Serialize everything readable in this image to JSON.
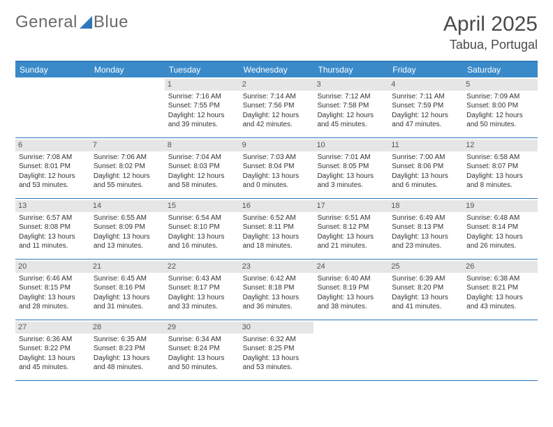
{
  "brand": {
    "part1": "General",
    "part2": "Blue"
  },
  "title": {
    "month_year": "April 2025",
    "location": "Tabua, Portugal"
  },
  "colors": {
    "header_bg": "#3a8ac9",
    "border": "#2e77b8",
    "daynum_bg": "#e6e6e6",
    "text": "#333333",
    "logo_text": "#6a6a6a"
  },
  "weekdays": [
    "Sunday",
    "Monday",
    "Tuesday",
    "Wednesday",
    "Thursday",
    "Friday",
    "Saturday"
  ],
  "weeks": [
    [
      null,
      null,
      {
        "n": "1",
        "sr": "Sunrise: 7:16 AM",
        "ss": "Sunset: 7:55 PM",
        "dl": "Daylight: 12 hours and 39 minutes."
      },
      {
        "n": "2",
        "sr": "Sunrise: 7:14 AM",
        "ss": "Sunset: 7:56 PM",
        "dl": "Daylight: 12 hours and 42 minutes."
      },
      {
        "n": "3",
        "sr": "Sunrise: 7:12 AM",
        "ss": "Sunset: 7:58 PM",
        "dl": "Daylight: 12 hours and 45 minutes."
      },
      {
        "n": "4",
        "sr": "Sunrise: 7:11 AM",
        "ss": "Sunset: 7:59 PM",
        "dl": "Daylight: 12 hours and 47 minutes."
      },
      {
        "n": "5",
        "sr": "Sunrise: 7:09 AM",
        "ss": "Sunset: 8:00 PM",
        "dl": "Daylight: 12 hours and 50 minutes."
      }
    ],
    [
      {
        "n": "6",
        "sr": "Sunrise: 7:08 AM",
        "ss": "Sunset: 8:01 PM",
        "dl": "Daylight: 12 hours and 53 minutes."
      },
      {
        "n": "7",
        "sr": "Sunrise: 7:06 AM",
        "ss": "Sunset: 8:02 PM",
        "dl": "Daylight: 12 hours and 55 minutes."
      },
      {
        "n": "8",
        "sr": "Sunrise: 7:04 AM",
        "ss": "Sunset: 8:03 PM",
        "dl": "Daylight: 12 hours and 58 minutes."
      },
      {
        "n": "9",
        "sr": "Sunrise: 7:03 AM",
        "ss": "Sunset: 8:04 PM",
        "dl": "Daylight: 13 hours and 0 minutes."
      },
      {
        "n": "10",
        "sr": "Sunrise: 7:01 AM",
        "ss": "Sunset: 8:05 PM",
        "dl": "Daylight: 13 hours and 3 minutes."
      },
      {
        "n": "11",
        "sr": "Sunrise: 7:00 AM",
        "ss": "Sunset: 8:06 PM",
        "dl": "Daylight: 13 hours and 6 minutes."
      },
      {
        "n": "12",
        "sr": "Sunrise: 6:58 AM",
        "ss": "Sunset: 8:07 PM",
        "dl": "Daylight: 13 hours and 8 minutes."
      }
    ],
    [
      {
        "n": "13",
        "sr": "Sunrise: 6:57 AM",
        "ss": "Sunset: 8:08 PM",
        "dl": "Daylight: 13 hours and 11 minutes."
      },
      {
        "n": "14",
        "sr": "Sunrise: 6:55 AM",
        "ss": "Sunset: 8:09 PM",
        "dl": "Daylight: 13 hours and 13 minutes."
      },
      {
        "n": "15",
        "sr": "Sunrise: 6:54 AM",
        "ss": "Sunset: 8:10 PM",
        "dl": "Daylight: 13 hours and 16 minutes."
      },
      {
        "n": "16",
        "sr": "Sunrise: 6:52 AM",
        "ss": "Sunset: 8:11 PM",
        "dl": "Daylight: 13 hours and 18 minutes."
      },
      {
        "n": "17",
        "sr": "Sunrise: 6:51 AM",
        "ss": "Sunset: 8:12 PM",
        "dl": "Daylight: 13 hours and 21 minutes."
      },
      {
        "n": "18",
        "sr": "Sunrise: 6:49 AM",
        "ss": "Sunset: 8:13 PM",
        "dl": "Daylight: 13 hours and 23 minutes."
      },
      {
        "n": "19",
        "sr": "Sunrise: 6:48 AM",
        "ss": "Sunset: 8:14 PM",
        "dl": "Daylight: 13 hours and 26 minutes."
      }
    ],
    [
      {
        "n": "20",
        "sr": "Sunrise: 6:46 AM",
        "ss": "Sunset: 8:15 PM",
        "dl": "Daylight: 13 hours and 28 minutes."
      },
      {
        "n": "21",
        "sr": "Sunrise: 6:45 AM",
        "ss": "Sunset: 8:16 PM",
        "dl": "Daylight: 13 hours and 31 minutes."
      },
      {
        "n": "22",
        "sr": "Sunrise: 6:43 AM",
        "ss": "Sunset: 8:17 PM",
        "dl": "Daylight: 13 hours and 33 minutes."
      },
      {
        "n": "23",
        "sr": "Sunrise: 6:42 AM",
        "ss": "Sunset: 8:18 PM",
        "dl": "Daylight: 13 hours and 36 minutes."
      },
      {
        "n": "24",
        "sr": "Sunrise: 6:40 AM",
        "ss": "Sunset: 8:19 PM",
        "dl": "Daylight: 13 hours and 38 minutes."
      },
      {
        "n": "25",
        "sr": "Sunrise: 6:39 AM",
        "ss": "Sunset: 8:20 PM",
        "dl": "Daylight: 13 hours and 41 minutes."
      },
      {
        "n": "26",
        "sr": "Sunrise: 6:38 AM",
        "ss": "Sunset: 8:21 PM",
        "dl": "Daylight: 13 hours and 43 minutes."
      }
    ],
    [
      {
        "n": "27",
        "sr": "Sunrise: 6:36 AM",
        "ss": "Sunset: 8:22 PM",
        "dl": "Daylight: 13 hours and 45 minutes."
      },
      {
        "n": "28",
        "sr": "Sunrise: 6:35 AM",
        "ss": "Sunset: 8:23 PM",
        "dl": "Daylight: 13 hours and 48 minutes."
      },
      {
        "n": "29",
        "sr": "Sunrise: 6:34 AM",
        "ss": "Sunset: 8:24 PM",
        "dl": "Daylight: 13 hours and 50 minutes."
      },
      {
        "n": "30",
        "sr": "Sunrise: 6:32 AM",
        "ss": "Sunset: 8:25 PM",
        "dl": "Daylight: 13 hours and 53 minutes."
      },
      null,
      null,
      null
    ]
  ]
}
